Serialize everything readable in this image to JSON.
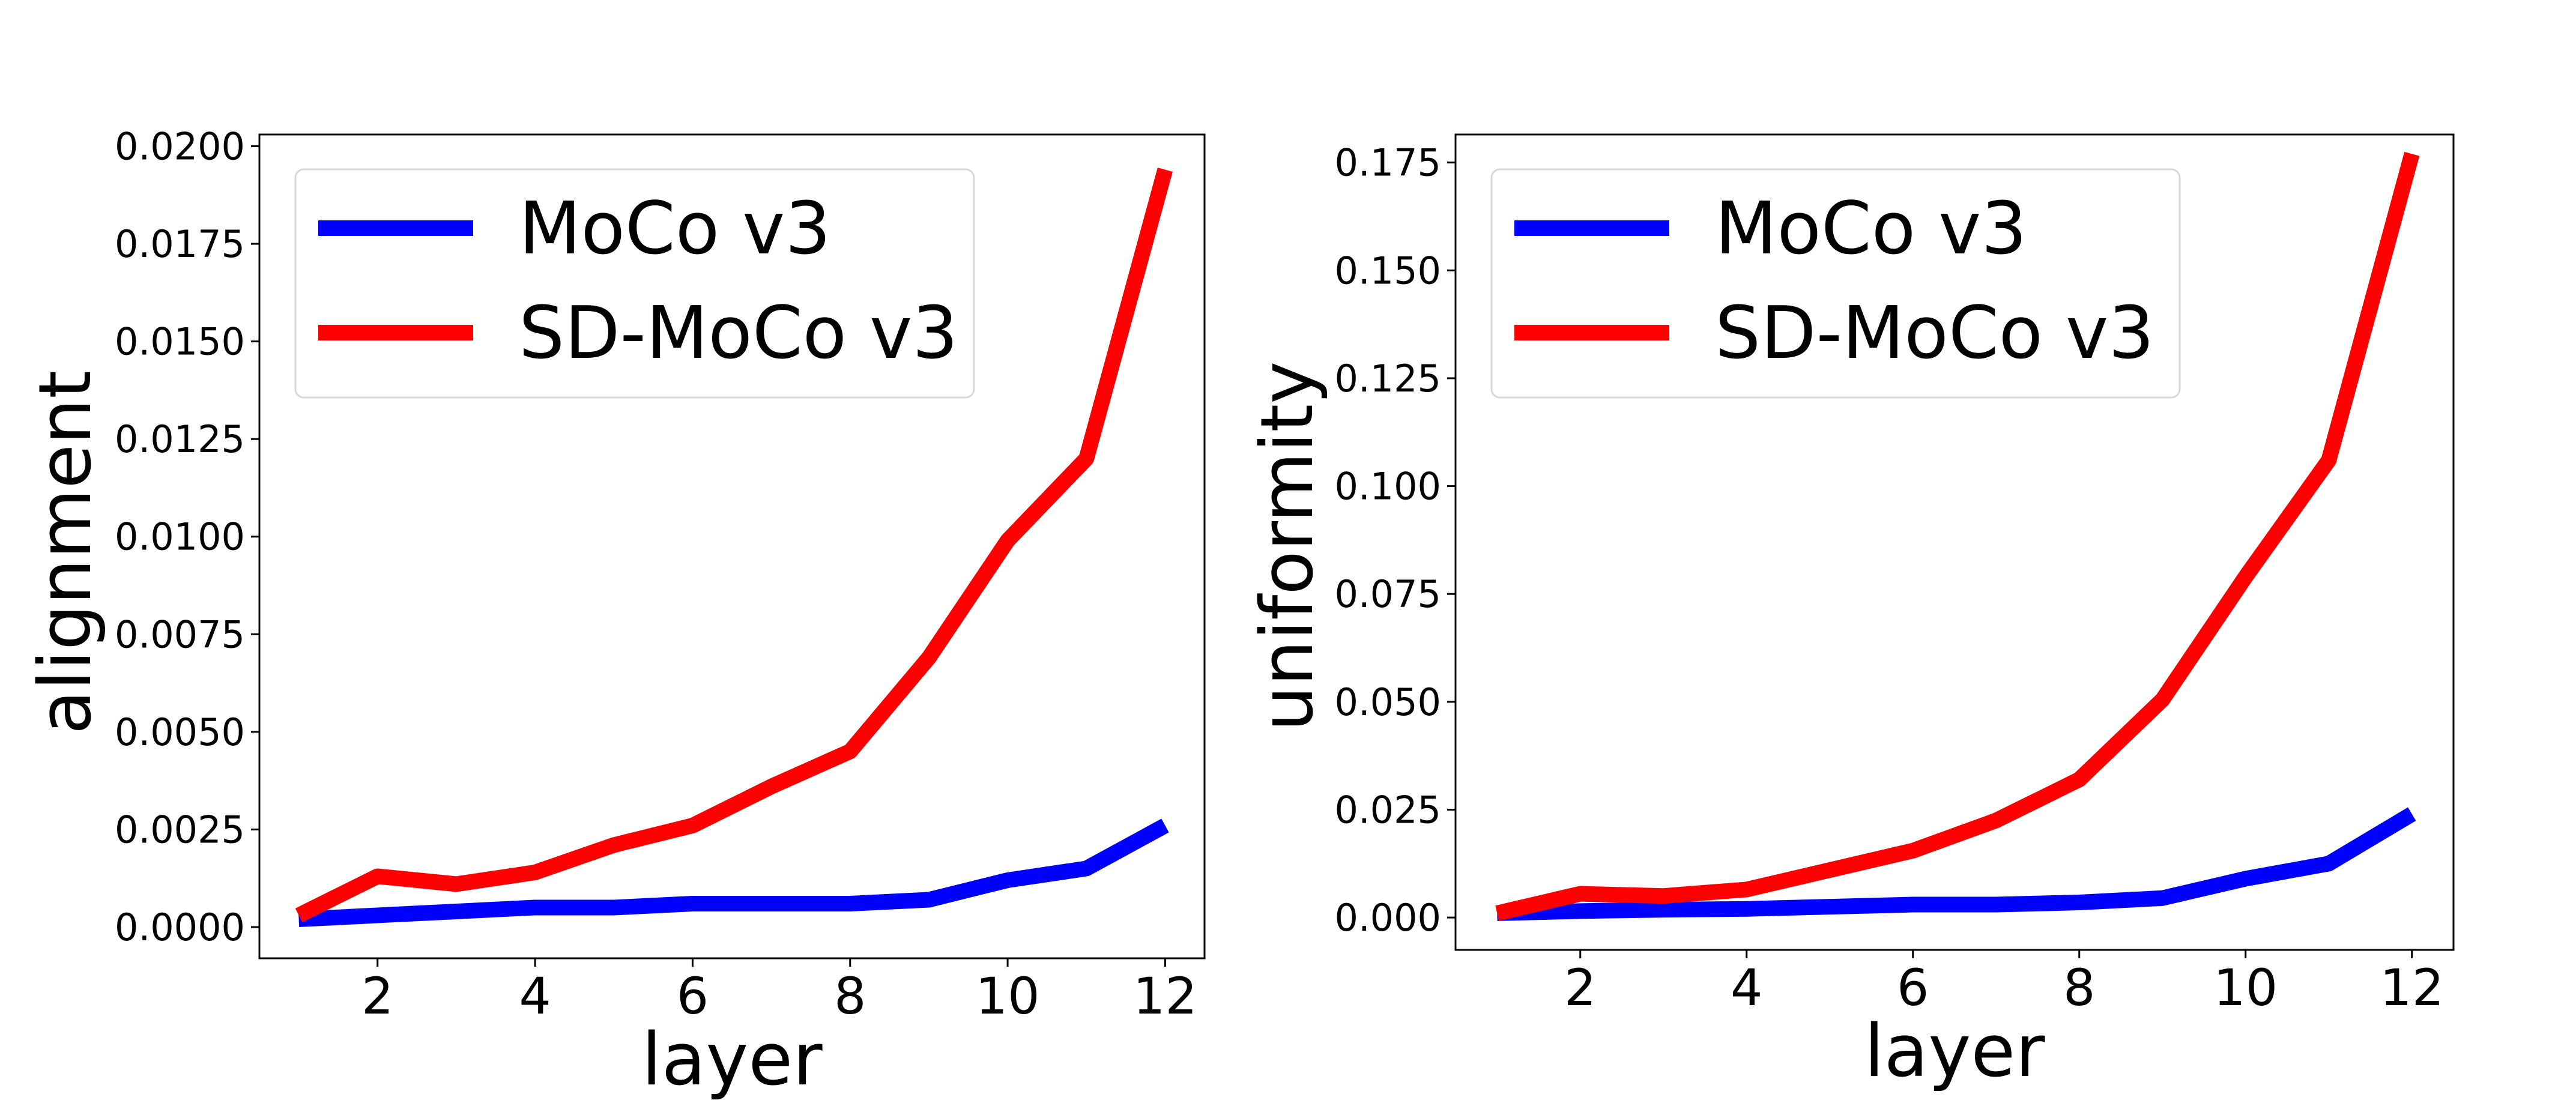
{
  "colors": {
    "moco": "#0000ff",
    "sd_moco": "#ff0000"
  },
  "chart_data": [
    {
      "type": "line",
      "xlabel": "layer",
      "ylabel": "alignment",
      "xlim": [
        0.5,
        12.5
      ],
      "ylim": [
        -0.0008,
        0.0203
      ],
      "xticks": [
        2,
        4,
        6,
        8,
        10,
        12
      ],
      "xtick_labels": [
        "2",
        "4",
        "6",
        "8",
        "10",
        "12"
      ],
      "yticks": [
        0,
        0.0025,
        0.005,
        0.0075,
        0.01,
        0.0125,
        0.015,
        0.0175,
        0.02
      ],
      "ytick_labels": [
        "0.0000",
        "0.0025",
        "0.0050",
        "0.0075",
        "0.0100",
        "0.0125",
        "0.0150",
        "0.0175",
        "0.0200"
      ],
      "legend_position": "top-left",
      "grid": false,
      "x": [
        1,
        2,
        3,
        4,
        5,
        6,
        7,
        8,
        9,
        10,
        11,
        12
      ],
      "series": [
        {
          "name": "MoCo v3",
          "color": "#0000ff",
          "values": [
            0.0002,
            0.0003,
            0.0004,
            0.0005,
            0.0005,
            0.0006,
            0.0006,
            0.0006,
            0.0007,
            0.0012,
            0.0015,
            0.0026
          ]
        },
        {
          "name": "SD-MoCo v3",
          "color": "#ff0000",
          "values": [
            0.0003,
            0.0013,
            0.0011,
            0.0014,
            0.0021,
            0.0026,
            0.0036,
            0.0045,
            0.0069,
            0.0099,
            0.012,
            0.0194
          ]
        }
      ]
    },
    {
      "type": "line",
      "xlabel": "layer",
      "ylabel": "uniformity",
      "xlim": [
        0.5,
        12.5
      ],
      "ylim": [
        -0.0075,
        0.1815
      ],
      "xticks": [
        2,
        4,
        6,
        8,
        10,
        12
      ],
      "xtick_labels": [
        "2",
        "4",
        "6",
        "8",
        "10",
        "12"
      ],
      "yticks": [
        0,
        0.025,
        0.05,
        0.075,
        0.1,
        0.125,
        0.15,
        0.175
      ],
      "ytick_labels": [
        "0.000",
        "0.025",
        "0.050",
        "0.075",
        "0.100",
        "0.125",
        "0.150",
        "0.175"
      ],
      "legend_position": "top-left",
      "grid": false,
      "x": [
        1,
        2,
        3,
        4,
        5,
        6,
        7,
        8,
        9,
        10,
        11,
        12
      ],
      "series": [
        {
          "name": "MoCo v3",
          "color": "#0000ff",
          "values": [
            0.001,
            0.0015,
            0.0018,
            0.002,
            0.0025,
            0.003,
            0.003,
            0.0035,
            0.0045,
            0.009,
            0.0125,
            0.024
          ]
        },
        {
          "name": "SD-MoCo v3",
          "color": "#ff0000",
          "values": [
            0.001,
            0.0055,
            0.005,
            0.0065,
            0.011,
            0.0155,
            0.0225,
            0.032,
            0.0505,
            0.079,
            0.106,
            0.177
          ]
        }
      ]
    }
  ]
}
